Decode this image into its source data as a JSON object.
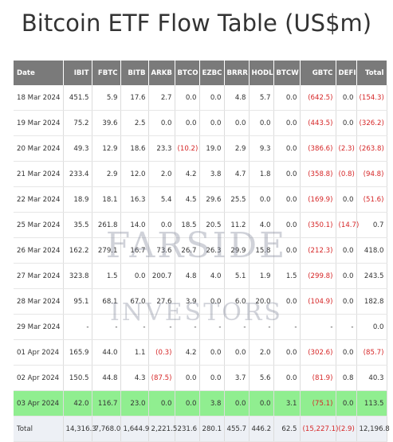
{
  "title": "Bitcoin ETF Flow Table (US$m)",
  "watermark": {
    "line1": "FARSIDE",
    "line2": "INVESTORS"
  },
  "columns": [
    "Date",
    "IBIT",
    "FBTC",
    "BITB",
    "ARKB",
    "BTCO",
    "EZBC",
    "BRRR",
    "HODL",
    "BTCW",
    "GBTC",
    "DEFI",
    "Total"
  ],
  "rows": [
    {
      "date": "18 Mar 2024",
      "cells": [
        "451.5",
        "5.9",
        "17.6",
        "2.7",
        "0.0",
        "0.0",
        "4.8",
        "5.7",
        "0.0",
        "(642.5)",
        "0.0",
        "(154.3)"
      ],
      "neg": [
        9,
        11
      ],
      "highlight": false
    },
    {
      "date": "19 Mar 2024",
      "cells": [
        "75.2",
        "39.6",
        "2.5",
        "0.0",
        "0.0",
        "0.0",
        "0.0",
        "0.0",
        "0.0",
        "(443.5)",
        "0.0",
        "(326.2)"
      ],
      "neg": [
        9,
        11
      ],
      "highlight": false
    },
    {
      "date": "20 Mar 2024",
      "cells": [
        "49.3",
        "12.9",
        "18.6",
        "23.3",
        "(10.2)",
        "19.0",
        "2.9",
        "9.3",
        "0.0",
        "(386.6)",
        "(2.3)",
        "(263.8)"
      ],
      "neg": [
        4,
        9,
        10,
        11
      ],
      "highlight": false
    },
    {
      "date": "21 Mar 2024",
      "cells": [
        "233.4",
        "2.9",
        "12.0",
        "2.0",
        "4.2",
        "3.8",
        "4.7",
        "1.8",
        "0.0",
        "(358.8)",
        "(0.8)",
        "(94.8)"
      ],
      "neg": [
        9,
        10,
        11
      ],
      "highlight": false
    },
    {
      "date": "22 Mar 2024",
      "cells": [
        "18.9",
        "18.1",
        "16.3",
        "5.4",
        "4.5",
        "29.6",
        "25.5",
        "0.0",
        "0.0",
        "(169.9)",
        "0.0",
        "(51.6)"
      ],
      "neg": [
        9,
        11
      ],
      "highlight": false
    },
    {
      "date": "25 Mar 2024",
      "cells": [
        "35.5",
        "261.8",
        "14.0",
        "0.0",
        "18.5",
        "20.5",
        "11.2",
        "4.0",
        "0.0",
        "(350.1)",
        "(14.7)",
        "0.7"
      ],
      "neg": [
        9,
        10
      ],
      "highlight": false
    },
    {
      "date": "26 Mar 2024",
      "cells": [
        "162.2",
        "279.1",
        "16.7",
        "73.6",
        "26.7",
        "26.3",
        "29.9",
        "15.8",
        "0.0",
        "(212.3)",
        "0.0",
        "418.0"
      ],
      "neg": [
        9
      ],
      "highlight": false
    },
    {
      "date": "27 Mar 2024",
      "cells": [
        "323.8",
        "1.5",
        "0.0",
        "200.7",
        "4.8",
        "4.0",
        "5.1",
        "1.9",
        "1.5",
        "(299.8)",
        "0.0",
        "243.5"
      ],
      "neg": [
        9
      ],
      "highlight": false
    },
    {
      "date": "28 Mar 2024",
      "cells": [
        "95.1",
        "68.1",
        "67.0",
        "27.6",
        "3.9",
        "0.0",
        "6.0",
        "20.0",
        "0.0",
        "(104.9)",
        "0.0",
        "182.8"
      ],
      "neg": [
        9
      ],
      "highlight": false
    },
    {
      "date": "29 Mar 2024",
      "cells": [
        "-",
        "-",
        "-",
        "-",
        "-",
        "-",
        "-",
        "-",
        "-",
        "-",
        "-",
        "0.0"
      ],
      "neg": [],
      "highlight": false
    },
    {
      "date": "01 Apr 2024",
      "cells": [
        "165.9",
        "44.0",
        "1.1",
        "(0.3)",
        "4.2",
        "0.0",
        "0.0",
        "2.0",
        "0.0",
        "(302.6)",
        "0.0",
        "(85.7)"
      ],
      "neg": [
        3,
        9,
        11
      ],
      "highlight": false
    },
    {
      "date": "02 Apr 2024",
      "cells": [
        "150.5",
        "44.8",
        "4.3",
        "(87.5)",
        "0.0",
        "0.0",
        "3.7",
        "5.6",
        "0.0",
        "(81.9)",
        "0.8",
        "40.3"
      ],
      "neg": [
        3,
        9
      ],
      "highlight": false
    },
    {
      "date": "03 Apr 2024",
      "cells": [
        "42.0",
        "116.7",
        "23.0",
        "0.0",
        "0.0",
        "3.8",
        "0.0",
        "0.0",
        "3.1",
        "(75.1)",
        "0.0",
        "113.5"
      ],
      "neg": [
        9
      ],
      "highlight": true
    },
    {
      "date": "Total",
      "cells": [
        "14,316.3",
        "7,768.0",
        "1,644.9",
        "2,221.5",
        "231.6",
        "280.1",
        "455.7",
        "446.2",
        "62.5",
        "(15,227.1)",
        "(2.9)",
        "12,196.8"
      ],
      "neg": [
        9,
        10
      ],
      "highlight": false,
      "total": true
    }
  ],
  "colors": {
    "header_bg": "#7a7a7a",
    "highlight": "#90ee90",
    "negative": "#d62728",
    "total_bg": "#edf0f5"
  }
}
